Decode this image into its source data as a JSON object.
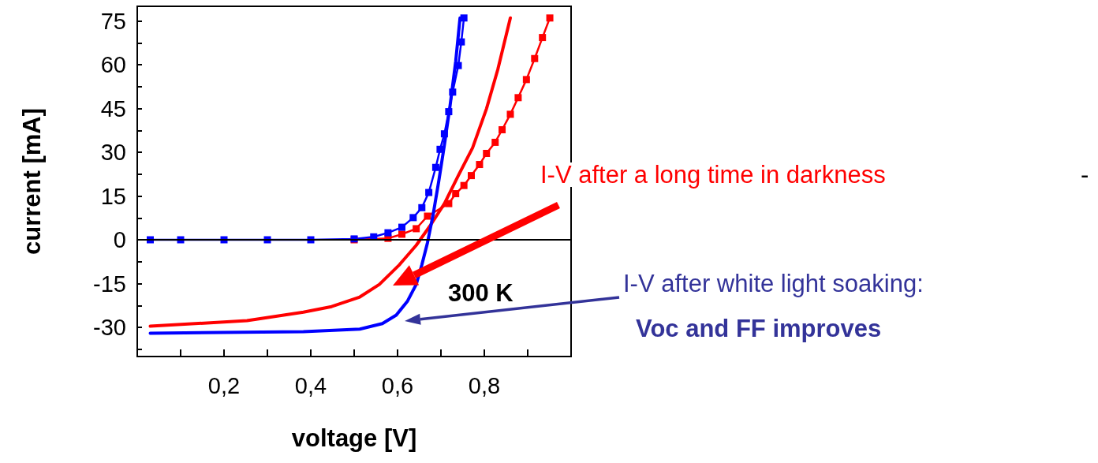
{
  "chart_data": {
    "type": "line",
    "xlabel": "voltage [V]",
    "ylabel": "current [mA]",
    "xlim": [
      0,
      1
    ],
    "ylim": [
      -40,
      80
    ],
    "xticks": [
      {
        "value": 0.1,
        "label": null
      },
      {
        "value": 0.2,
        "label": "0,2"
      },
      {
        "value": 0.3,
        "label": null
      },
      {
        "value": 0.4,
        "label": "0,4"
      },
      {
        "value": 0.5,
        "label": null
      },
      {
        "value": 0.6,
        "label": "0,6"
      },
      {
        "value": 0.7,
        "label": null
      },
      {
        "value": 0.8,
        "label": "0,8"
      },
      {
        "value": 0.9,
        "label": null
      }
    ],
    "yticks": [
      {
        "value": -37.5,
        "label": null
      },
      -30,
      {
        "value": -22.5,
        "label": null
      },
      -15,
      {
        "value": -7.5,
        "label": null
      },
      0,
      {
        "value": 7.5,
        "label": null
      },
      15,
      {
        "value": 22.5,
        "label": null
      },
      30,
      {
        "value": 37.5,
        "label": null
      },
      45,
      {
        "value": 52.5,
        "label": null
      },
      60,
      {
        "value": 67.5,
        "label": null
      },
      75
    ],
    "grid": false,
    "line_style": "solid",
    "series": [
      {
        "color": "#ff0000",
        "marker": "none",
        "x": [
          0.03,
          0.253,
          0.383,
          0.448,
          0.513,
          0.558,
          0.604,
          0.643,
          0.675,
          0.708,
          0.74,
          0.773,
          0.805,
          0.831,
          0.86
        ],
        "values": [
          -29.6,
          -27.7,
          -24.8,
          -22.9,
          -19.6,
          -15.3,
          -8.6,
          -1.9,
          4.8,
          12.4,
          22,
          31.5,
          44.9,
          58.3,
          76
        ]
      },
      {
        "color": "#ff0000",
        "marker": "square",
        "x": [
          0.5,
          0.578,
          0.61,
          0.643,
          0.669,
          0.718,
          0.734,
          0.753,
          0.77,
          0.789,
          0.805,
          0.825,
          0.841,
          0.86,
          0.878,
          0.897,
          0.916,
          0.934,
          0.951
        ],
        "values": [
          0,
          0.5,
          1.9,
          3.8,
          8.1,
          12.4,
          15.8,
          18.6,
          22,
          25.8,
          29.6,
          33.4,
          37.7,
          43,
          48.7,
          54.9,
          62.1,
          69.3,
          76
        ]
      },
      {
        "color": "#0000ff",
        "marker": "none",
        "x": [
          0.03,
          0.383,
          0.513,
          0.565,
          0.597,
          0.623,
          0.643,
          0.656,
          0.669,
          0.682,
          0.695,
          0.708,
          0.721,
          0.734,
          0.744
        ],
        "values": [
          -32,
          -31.5,
          -30.6,
          -28.7,
          -25.8,
          -21,
          -15.3,
          -8.6,
          -1,
          8.6,
          20.1,
          32.5,
          45.9,
          61.1,
          76
        ]
      },
      {
        "color": "#0000ff",
        "marker": "square",
        "x": [
          0.03,
          0.1,
          0.2,
          0.3,
          0.4,
          0.5,
          0.545,
          0.578,
          0.61,
          0.636,
          0.656,
          0.672,
          0.688,
          0.698,
          0.708,
          0.718,
          0.727,
          0.74,
          0.747,
          0.753
        ],
        "values": [
          0,
          0,
          0,
          0,
          0,
          0.3,
          1,
          2.4,
          4.3,
          7.6,
          11,
          16.2,
          24.8,
          31,
          36.3,
          43.9,
          50.6,
          59.7,
          67.8,
          76
        ]
      }
    ],
    "ref_lines": [
      {
        "axis": "y",
        "value": 0,
        "color": "#000000"
      }
    ],
    "annotations": [
      "I-V after a long time in darkness",
      "-",
      "I-V after white light soaking:",
      "Voc and FF improves",
      "300 K"
    ]
  }
}
